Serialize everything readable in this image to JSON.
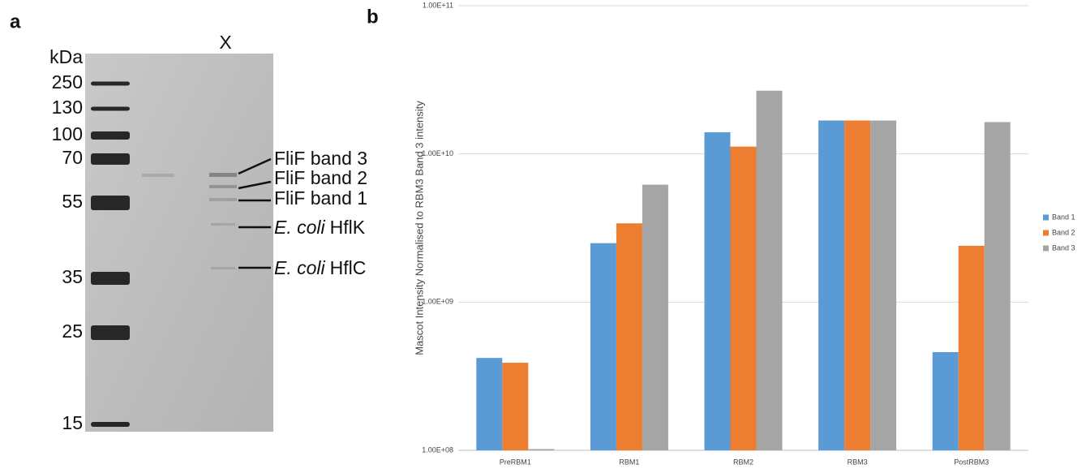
{
  "panel_a": {
    "letter": "a",
    "unit": "kDa",
    "lane": "X",
    "markers": [
      "250",
      "130",
      "100",
      "70",
      "55",
      "35",
      "25",
      "15"
    ],
    "annotations": [
      {
        "label": "FliF band 3"
      },
      {
        "label": "FliF band 2"
      },
      {
        "label": "FliF band 1"
      },
      {
        "species": "E. coli",
        "label": "HflK"
      },
      {
        "species": "E. coli",
        "label": "HflC"
      }
    ]
  },
  "chart_data": {
    "type": "bar",
    "panel": "b",
    "y_label": "Mascot Intensity Normalised to RBM3 Band 3 intensity",
    "categories": [
      "PreRBM1",
      "RBM1",
      "RBM2",
      "RBM3",
      "PostRBM3"
    ],
    "series": [
      {
        "name": "Band 1",
        "color": "#5b9bd5",
        "values": [
          420000000,
          2500000000,
          14000000000,
          16800000000,
          460000000
        ]
      },
      {
        "name": "Band 2",
        "color": "#ed7d31",
        "values": [
          390000000,
          3400000000,
          11200000000,
          16800000000,
          2400000000
        ]
      },
      {
        "name": "Band 3",
        "color": "#a5a5a5",
        "values": [
          102000000,
          6200000000,
          26700000000,
          16800000000,
          16400000000
        ]
      }
    ],
    "log_scale": true,
    "grid": true,
    "legend": "right",
    "ylim": [
      100000000,
      100000000000
    ],
    "yticks": [
      {
        "value": 100000000,
        "label": "1.00E+08"
      },
      {
        "value": 1000000000,
        "label": "1.00E+09"
      },
      {
        "value": 10000000000,
        "label": "1.00E+10"
      },
      {
        "value": 100000000000,
        "label": "1.00E+11"
      }
    ]
  }
}
